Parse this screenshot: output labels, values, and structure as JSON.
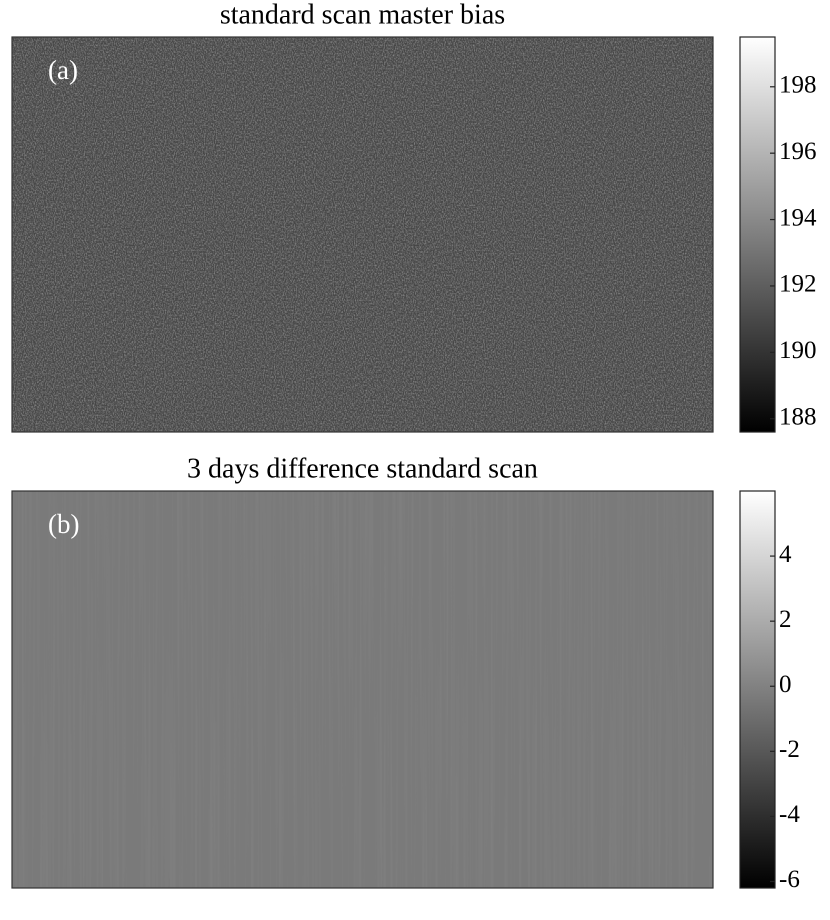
{
  "chart_data": [
    {
      "type": "image",
      "title": "standard scan master bias",
      "panel_label": "(a)",
      "colormap": "gray",
      "clim": [
        187.6,
        199.5
      ],
      "cticks": [
        188,
        190,
        192,
        194,
        196,
        198
      ]
    },
    {
      "type": "image",
      "title": "3 days difference standard scan",
      "panel_label": "(b)",
      "colormap": "gray",
      "clim": [
        -6.2,
        6.0
      ],
      "cticks": [
        -6,
        -4,
        -2,
        0,
        2,
        4
      ]
    }
  ]
}
